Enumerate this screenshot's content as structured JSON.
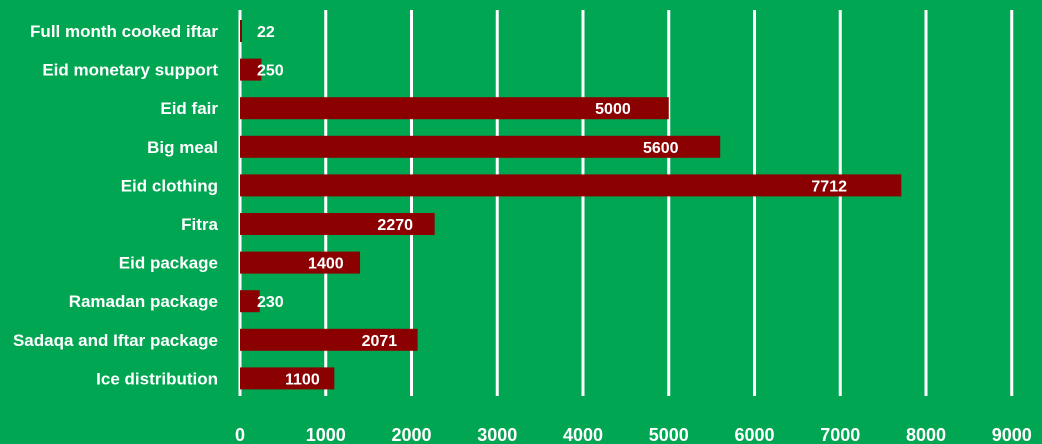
{
  "chart_data": {
    "type": "bar",
    "orientation": "horizontal",
    "categories": [
      "Full month cooked iftar",
      "Eid monetary support",
      "Eid fair",
      "Big meal",
      "Eid clothing",
      "Fitra",
      "Eid package",
      "Ramadan package",
      "Sadaqa and Iftar package",
      "Ice distribution"
    ],
    "values": [
      22,
      250,
      5000,
      5600,
      7712,
      2270,
      1400,
      230,
      2071,
      1100
    ],
    "data_labels": [
      "22",
      "250",
      "5000",
      "5600",
      "7712",
      "2270",
      "1400",
      "230",
      "2071",
      "1100"
    ],
    "xlim": [
      0,
      9000
    ],
    "x_ticks": [
      0,
      1000,
      2000,
      3000,
      4000,
      5000,
      6000,
      7000,
      8000,
      9000
    ],
    "x_tick_labels": [
      "0",
      "1000",
      "2000",
      "3000",
      "4000",
      "5000",
      "6000",
      "7000",
      "8000",
      "9000"
    ],
    "title": "",
    "xlabel": "",
    "ylabel": "",
    "grid": "vertical",
    "legend": "none",
    "colors": {
      "background": "#00a651",
      "bar": "#8b0000",
      "grid": "#ffffff",
      "text": "#ffffff"
    }
  }
}
